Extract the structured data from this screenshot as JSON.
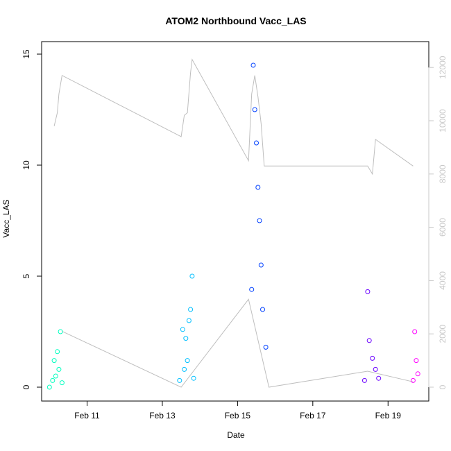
{
  "chart_data": {
    "type": "scatter",
    "title": "ATOM2 Northbound Vacc_LAS",
    "xlabel": "Date",
    "ylabel": "Vacc_LAS",
    "x_ticks": [
      "Feb 11",
      "Feb 13",
      "Feb 15",
      "Feb 17",
      "Feb 19"
    ],
    "xlim": [
      "2012-02-09T19:00",
      "2012-02-20T02:00"
    ],
    "ylim": [
      0,
      15
    ],
    "y_ticks": [
      "0",
      "5",
      "10",
      "15"
    ],
    "y2_ticks": [
      "0",
      "2000",
      "4000",
      "6000",
      "8000",
      "10000",
      "12000"
    ],
    "y2lim": [
      0,
      12500
    ],
    "grid": false,
    "legend": "none",
    "colors": {
      "line": "#bebebe",
      "right_axis": "#c8c8c8",
      "group1": "#00ffbf",
      "group2": "#00bfff",
      "group3": "#0040ff",
      "group4": "#6a00ff",
      "group5": "#ff00ff"
    },
    "series": [
      {
        "axis": "right",
        "style": "line",
        "x": [
          "2012-02-10T03:00",
          "2012-02-10T05:00",
          "2012-02-10T06:00",
          "2012-02-10T08:00",
          "2012-02-13T12:00",
          "2012-02-13T14:00",
          "2012-02-13T16:00",
          "2012-02-13T18:00",
          "2012-02-13T19:00",
          "2012-02-15T07:00",
          "2012-02-15T09:00",
          "2012-02-15T11:00",
          "2012-02-15T13:00",
          "2012-02-15T15:00",
          "2012-02-15T17:00",
          "2012-02-18T11:00",
          "2012-02-18T14:00",
          "2012-02-18T16:00",
          "2012-02-19T16:00"
        ],
        "y": [
          9800,
          10300,
          11000,
          11700,
          9400,
          10200,
          10300,
          11800,
          12300,
          8500,
          11000,
          11700,
          10900,
          9900,
          8300,
          8300,
          8000,
          9300,
          8300
        ]
      },
      {
        "axis": "right",
        "style": "line",
        "x": [
          "2012-02-10T08:00",
          "2012-02-13T12:00",
          "2012-02-15T07:00",
          "2012-02-15T20:00",
          "2012-02-18T11:00",
          "2012-02-19T16:00"
        ],
        "y": [
          2100,
          0,
          3300,
          0,
          600,
          200
        ]
      },
      {
        "axis": "left",
        "style": "points",
        "color": "#00ffbf",
        "x": [
          "2012-02-10T00:00",
          "2012-02-10T02:00",
          "2012-02-10T03:00",
          "2012-02-10T04:00",
          "2012-02-10T05:00",
          "2012-02-10T06:00",
          "2012-02-10T07:00",
          "2012-02-10T08:00"
        ],
        "y": [
          0.0,
          0.3,
          1.2,
          0.5,
          1.6,
          0.8,
          2.5,
          0.2
        ]
      },
      {
        "axis": "left",
        "style": "points",
        "color": "#00bfff",
        "x": [
          "2012-02-13T11:00",
          "2012-02-13T13:00",
          "2012-02-13T14:00",
          "2012-02-13T15:00",
          "2012-02-13T16:00",
          "2012-02-13T17:00",
          "2012-02-13T18:00",
          "2012-02-13T19:00",
          "2012-02-13T20:00"
        ],
        "y": [
          0.3,
          2.6,
          0.8,
          2.2,
          1.2,
          3.0,
          3.5,
          5.0,
          0.4
        ]
      },
      {
        "axis": "left",
        "style": "points",
        "color": "#0040ff",
        "x": [
          "2012-02-15T09:00",
          "2012-02-15T10:00",
          "2012-02-15T11:00",
          "2012-02-15T12:00",
          "2012-02-15T13:00",
          "2012-02-15T14:00",
          "2012-02-15T15:00",
          "2012-02-15T16:00",
          "2012-02-15T18:00"
        ],
        "y": [
          4.4,
          14.5,
          12.5,
          11.0,
          9.0,
          7.5,
          5.5,
          3.5,
          1.8
        ]
      },
      {
        "axis": "left",
        "style": "points",
        "color": "#6a00ff",
        "x": [
          "2012-02-18T09:00",
          "2012-02-18T11:00",
          "2012-02-18T12:00",
          "2012-02-18T14:00",
          "2012-02-18T16:00",
          "2012-02-18T18:00"
        ],
        "y": [
          0.3,
          4.3,
          2.1,
          1.3,
          0.8,
          0.4
        ]
      },
      {
        "axis": "left",
        "style": "points",
        "color": "#ff00ff",
        "x": [
          "2012-02-19T16:00",
          "2012-02-19T17:00",
          "2012-02-19T18:00",
          "2012-02-19T19:00"
        ],
        "y": [
          0.3,
          2.5,
          1.2,
          0.6
        ]
      }
    ]
  }
}
